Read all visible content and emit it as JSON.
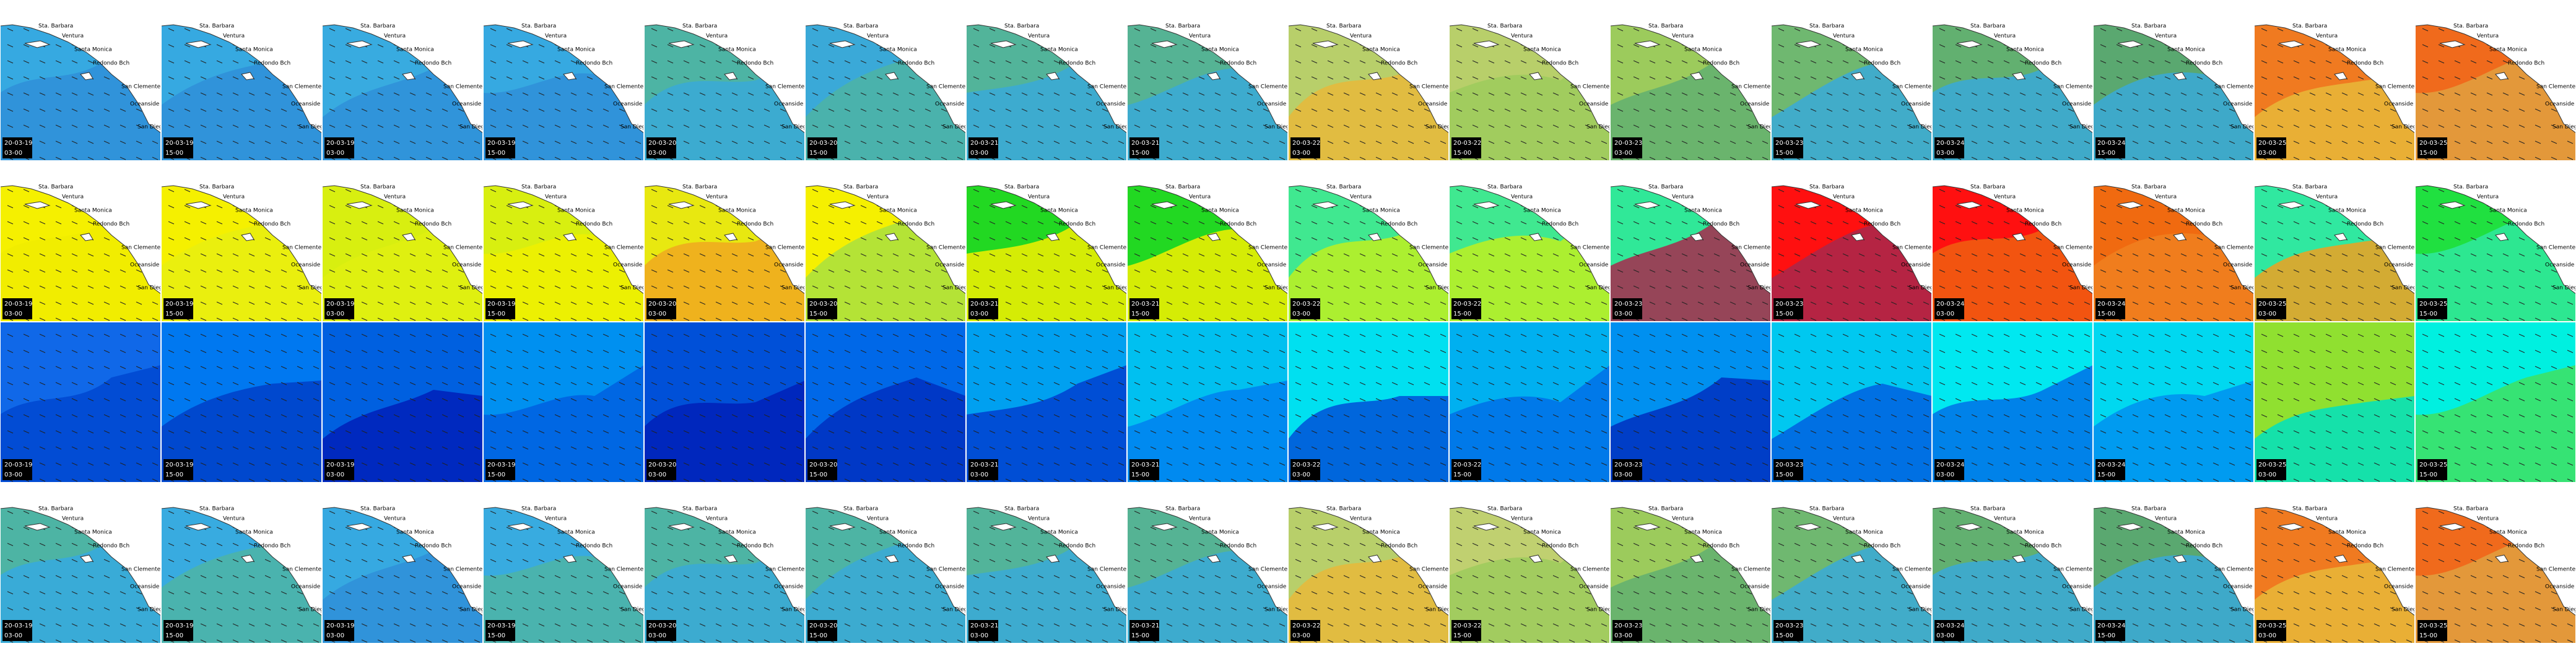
{
  "rows": [
    {
      "places": [
        "Sta. Barbara",
        "Ventura",
        "Santa Monica",
        "Redondo Bch",
        "San Clemente",
        "Oceanside",
        "San Diego"
      ],
      "tiles": [
        {
          "date": "20-03-19",
          "time": "03-00",
          "color": "#36a9e1",
          "color2": "#2f8fd8"
        },
        {
          "date": "20-03-19",
          "time": "15-00",
          "color": "#36a9e1",
          "color2": "#2f8fd8"
        },
        {
          "date": "20-03-19",
          "time": "03-00",
          "color": "#38abe0",
          "color2": "#2f8fd8"
        },
        {
          "date": "20-03-19",
          "time": "15-00",
          "color": "#36a9e1",
          "color2": "#2f8fd8"
        },
        {
          "date": "20-03-20",
          "time": "03-00",
          "color": "#4db4a4",
          "color2": "#3aa9d8"
        },
        {
          "date": "20-03-20",
          "time": "15-00",
          "color": "#3aa9d8",
          "color2": "#4db4a4"
        },
        {
          "date": "20-03-21",
          "time": "03-00",
          "color": "#52b49a",
          "color2": "#3aa9d8"
        },
        {
          "date": "20-03-21",
          "time": "15-00",
          "color": "#55b394",
          "color2": "#3aa9d8"
        },
        {
          "date": "20-03-22",
          "time": "03-00",
          "color": "#b8cf6a",
          "color2": "#e8b83a"
        },
        {
          "date": "20-03-22",
          "time": "15-00",
          "color": "#b8cf6a",
          "color2": "#9ccb5c"
        },
        {
          "date": "20-03-23",
          "time": "03-00",
          "color": "#9ccb5c",
          "color2": "#62b070"
        },
        {
          "date": "20-03-23",
          "time": "15-00",
          "color": "#6fb870",
          "color2": "#3aa9d8"
        },
        {
          "date": "20-03-24",
          "time": "03-00",
          "color": "#62b070",
          "color2": "#3aa9d8"
        },
        {
          "date": "20-03-24",
          "time": "15-00",
          "color": "#5aa870",
          "color2": "#3aa9d8"
        },
        {
          "date": "20-03-25",
          "time": "03-00",
          "color": "#f07a20",
          "color2": "#e8b83a"
        },
        {
          "date": "20-03-25",
          "time": "15-00",
          "color": "#f06a1c",
          "color2": "#e0a040"
        }
      ]
    },
    {
      "places": [
        "Sta. Barbara",
        "Ventura",
        "Santa Monica",
        "Redondo Bch",
        "San Clemente",
        "Oceanside",
        "San Diego"
      ],
      "tiles": [
        {
          "date": "20-03-19",
          "time": "03-00",
          "color": "#f5f000",
          "color2": "#f0ec00"
        },
        {
          "date": "20-03-19",
          "time": "15-00",
          "color": "#f5f000",
          "color2": "#e8ef10"
        },
        {
          "date": "20-03-19",
          "time": "03-00",
          "color": "#d8ef10",
          "color2": "#e0f010"
        },
        {
          "date": "20-03-19",
          "time": "15-00",
          "color": "#d8ef10",
          "color2": "#f0f000"
        },
        {
          "date": "20-03-20",
          "time": "03-00",
          "color": "#e8e810",
          "color2": "#f0a820"
        },
        {
          "date": "20-03-20",
          "time": "15-00",
          "color": "#f5f000",
          "color2": "#a8e040"
        },
        {
          "date": "20-03-21",
          "time": "03-00",
          "color": "#22d822",
          "color2": "#f5f000"
        },
        {
          "date": "20-03-21",
          "time": "15-00",
          "color": "#22d822",
          "color2": "#f5f000"
        },
        {
          "date": "20-03-22",
          "time": "03-00",
          "color": "#40e890",
          "color2": "#c0f020"
        },
        {
          "date": "20-03-22",
          "time": "15-00",
          "color": "#40e890",
          "color2": "#c0f020"
        },
        {
          "date": "20-03-23",
          "time": "03-00",
          "color": "#30e898",
          "color2": "#a8284c"
        },
        {
          "date": "20-03-23",
          "time": "15-00",
          "color": "#ff1010",
          "color2": "#a8284c"
        },
        {
          "date": "20-03-24",
          "time": "03-00",
          "color": "#ff1010",
          "color2": "#f06010"
        },
        {
          "date": "20-03-24",
          "time": "15-00",
          "color": "#f06a10",
          "color2": "#f08020"
        },
        {
          "date": "20-03-25",
          "time": "03-00",
          "color": "#30e8a0",
          "color2": "#f0a020"
        },
        {
          "date": "20-03-25",
          "time": "15-00",
          "color": "#20e040",
          "color2": "#30e8a0"
        }
      ]
    },
    {
      "tiles": [
        {
          "date": "20-03-19",
          "time": "03-00",
          "color": "#1068e8",
          "color2": "#0048d0"
        },
        {
          "date": "20-03-19",
          "time": "15-00",
          "color": "#0078f0",
          "color2": "#0040c8"
        },
        {
          "date": "20-03-19",
          "time": "03-00",
          "color": "#0060e0",
          "color2": "#0020b8"
        },
        {
          "date": "20-03-19",
          "time": "15-00",
          "color": "#0090f0",
          "color2": "#0060e0"
        },
        {
          "date": "20-03-20",
          "time": "03-00",
          "color": "#0050d8",
          "color2": "#0020b8"
        },
        {
          "date": "20-03-20",
          "time": "15-00",
          "color": "#0068e8",
          "color2": "#0030c0"
        },
        {
          "date": "20-03-21",
          "time": "03-00",
          "color": "#00a0f0",
          "color2": "#0040d0"
        },
        {
          "date": "20-03-21",
          "time": "15-00",
          "color": "#00c0f0",
          "color2": "#0080f0"
        },
        {
          "date": "20-03-22",
          "time": "03-00",
          "color": "#00e0f0",
          "color2": "#0050d8"
        },
        {
          "date": "20-03-22",
          "time": "15-00",
          "color": "#00b0f0",
          "color2": "#0070e8"
        },
        {
          "date": "20-03-23",
          "time": "03-00",
          "color": "#0090f0",
          "color2": "#0030c0"
        },
        {
          "date": "20-03-23",
          "time": "15-00",
          "color": "#00c8f0",
          "color2": "#0060e0"
        },
        {
          "date": "20-03-24",
          "time": "03-00",
          "color": "#00e8f0",
          "color2": "#0070e8"
        },
        {
          "date": "20-03-24",
          "time": "15-00",
          "color": "#00d8f0",
          "color2": "#0090f0"
        },
        {
          "date": "20-03-25",
          "time": "03-00",
          "color": "#90e030",
          "color2": "#00e0c0"
        },
        {
          "date": "20-03-25",
          "time": "15-00",
          "color": "#00f0e0",
          "color2": "#40e060"
        }
      ]
    },
    {
      "places": [
        "Sta. Barbara",
        "Ventura",
        "Santa Monica",
        "Redondo Bch",
        "San Clemente",
        "Oceanside",
        "San Diego"
      ],
      "tiles": [
        {
          "date": "20-03-19",
          "time": "03-00",
          "color": "#4db4a4",
          "color2": "#36a9e1"
        },
        {
          "date": "20-03-19",
          "time": "15-00",
          "color": "#38abe0",
          "color2": "#4db4a4"
        },
        {
          "date": "20-03-19",
          "time": "03-00",
          "color": "#36a9e1",
          "color2": "#2f8fd8"
        },
        {
          "date": "20-03-19",
          "time": "15-00",
          "color": "#38abe0",
          "color2": "#4db4a4"
        },
        {
          "date": "20-03-20",
          "time": "03-00",
          "color": "#4db4a4",
          "color2": "#3aa9d8"
        },
        {
          "date": "20-03-20",
          "time": "15-00",
          "color": "#4db4a4",
          "color2": "#3aa9d8"
        },
        {
          "date": "20-03-21",
          "time": "03-00",
          "color": "#52b49a",
          "color2": "#3aa9d8"
        },
        {
          "date": "20-03-21",
          "time": "15-00",
          "color": "#55b394",
          "color2": "#3aa9d8"
        },
        {
          "date": "20-03-22",
          "time": "03-00",
          "color": "#b8cf6a",
          "color2": "#e8b83a"
        },
        {
          "date": "20-03-22",
          "time": "15-00",
          "color": "#c0d070",
          "color2": "#9ccb5c"
        },
        {
          "date": "20-03-23",
          "time": "03-00",
          "color": "#9ccb5c",
          "color2": "#62b070"
        },
        {
          "date": "20-03-23",
          "time": "15-00",
          "color": "#6fb870",
          "color2": "#3aa9d8"
        },
        {
          "date": "20-03-24",
          "time": "03-00",
          "color": "#62b070",
          "color2": "#3aa9d8"
        },
        {
          "date": "20-03-24",
          "time": "15-00",
          "color": "#5aa870",
          "color2": "#3aa9d8"
        },
        {
          "date": "20-03-25",
          "time": "03-00",
          "color": "#f07a20",
          "color2": "#e8b83a"
        },
        {
          "date": "20-03-25",
          "time": "15-00",
          "color": "#f06a1c",
          "color2": "#e0a040"
        }
      ]
    }
  ]
}
